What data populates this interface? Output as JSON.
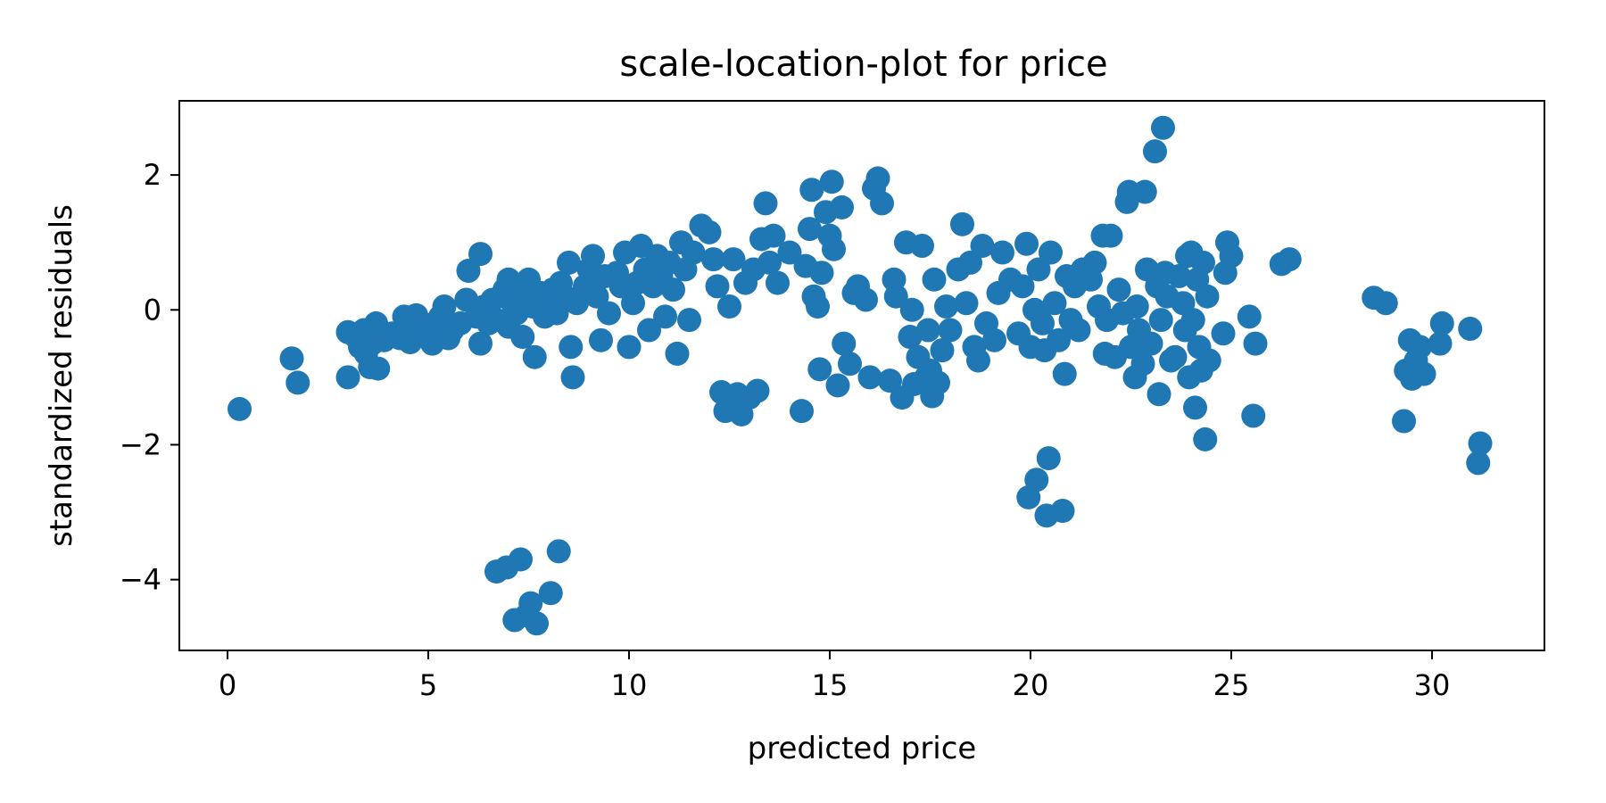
{
  "chart_data": {
    "type": "scatter",
    "title": "scale-location-plot for price",
    "xlabel": "predicted price",
    "ylabel": "standardized residuals",
    "xlim": [
      -1.2,
      32.8
    ],
    "ylim": [
      -5.05,
      3.1
    ],
    "xticks": [
      0,
      5,
      10,
      15,
      20,
      25,
      30
    ],
    "yticks": [
      2,
      0,
      -2,
      -4
    ],
    "ytick_labels": [
      "2",
      "0",
      "−2",
      "−4"
    ],
    "grid": false,
    "series": [
      {
        "color": "#1f77b4",
        "points": [
          [
            0.3,
            -1.47
          ],
          [
            1.6,
            -0.72
          ],
          [
            1.75,
            -1.08
          ],
          [
            3.0,
            -1.0
          ],
          [
            3.0,
            -0.33
          ],
          [
            3.2,
            -0.4
          ],
          [
            3.3,
            -0.55
          ],
          [
            3.4,
            -0.3
          ],
          [
            3.45,
            -0.65
          ],
          [
            3.55,
            -0.85
          ],
          [
            3.6,
            -0.5
          ],
          [
            3.7,
            -0.2
          ],
          [
            3.75,
            -0.87
          ],
          [
            3.9,
            -0.45
          ],
          [
            4.1,
            -0.35
          ],
          [
            4.3,
            -0.42
          ],
          [
            4.4,
            -0.1
          ],
          [
            4.5,
            -0.3
          ],
          [
            4.55,
            -0.48
          ],
          [
            4.7,
            -0.08
          ],
          [
            4.9,
            -0.25
          ],
          [
            5.0,
            -0.4
          ],
          [
            5.1,
            -0.5
          ],
          [
            5.2,
            -0.18
          ],
          [
            5.3,
            -0.1
          ],
          [
            5.4,
            0.05
          ],
          [
            5.5,
            -0.42
          ],
          [
            5.6,
            -0.3
          ],
          [
            5.8,
            -0.2
          ],
          [
            5.95,
            0.15
          ],
          [
            6.0,
            0.58
          ],
          [
            6.3,
            0.83
          ],
          [
            6.2,
            -0.1
          ],
          [
            6.3,
            -0.5
          ],
          [
            6.4,
            0.05
          ],
          [
            6.5,
            -0.2
          ],
          [
            6.6,
            0.15
          ],
          [
            6.7,
            -0.15
          ],
          [
            6.9,
            0.3
          ],
          [
            7.0,
            0.45
          ],
          [
            7.0,
            -0.25
          ],
          [
            7.1,
            0.1
          ],
          [
            7.2,
            -0.05
          ],
          [
            7.3,
            0.2
          ],
          [
            7.35,
            -0.4
          ],
          [
            7.5,
            0.45
          ],
          [
            7.6,
            0.05
          ],
          [
            7.65,
            -0.7
          ],
          [
            7.8,
            0.25
          ],
          [
            7.9,
            -0.1
          ],
          [
            8.0,
            0.1
          ],
          [
            8.1,
            0.3
          ],
          [
            8.2,
            -0.05
          ],
          [
            8.3,
            0.4
          ],
          [
            8.4,
            0.2
          ],
          [
            8.5,
            0.7
          ],
          [
            8.55,
            -0.55
          ],
          [
            8.6,
            -1.0
          ],
          [
            8.7,
            0.1
          ],
          [
            8.9,
            0.35
          ],
          [
            9.0,
            0.6
          ],
          [
            9.1,
            0.8
          ],
          [
            9.2,
            0.2
          ],
          [
            9.3,
            -0.45
          ],
          [
            9.4,
            0.5
          ],
          [
            9.5,
            -0.05
          ],
          [
            9.7,
            0.55
          ],
          [
            9.8,
            0.35
          ],
          [
            9.9,
            0.85
          ],
          [
            10.0,
            -0.55
          ],
          [
            10.1,
            0.1
          ],
          [
            10.2,
            0.4
          ],
          [
            10.3,
            0.95
          ],
          [
            10.4,
            0.6
          ],
          [
            10.5,
            -0.3
          ],
          [
            10.6,
            0.35
          ],
          [
            10.7,
            0.8
          ],
          [
            10.8,
            0.5
          ],
          [
            10.9,
            -0.1
          ],
          [
            11.0,
            0.7
          ],
          [
            11.1,
            0.3
          ],
          [
            11.2,
            -0.65
          ],
          [
            11.3,
            1.0
          ],
          [
            11.4,
            0.6
          ],
          [
            11.5,
            -0.15
          ],
          [
            11.6,
            0.85
          ],
          [
            11.8,
            1.25
          ],
          [
            12.0,
            1.15
          ],
          [
            12.1,
            0.75
          ],
          [
            12.2,
            0.35
          ],
          [
            12.3,
            -1.22
          ],
          [
            12.4,
            -1.5
          ],
          [
            12.5,
            0.05
          ],
          [
            12.6,
            0.75
          ],
          [
            12.7,
            -1.25
          ],
          [
            12.8,
            -1.55
          ],
          [
            12.9,
            0.4
          ],
          [
            13.0,
            -1.3
          ],
          [
            13.1,
            0.6
          ],
          [
            13.2,
            -1.2
          ],
          [
            13.3,
            1.05
          ],
          [
            13.4,
            1.58
          ],
          [
            13.5,
            0.7
          ],
          [
            13.6,
            1.1
          ],
          [
            13.7,
            0.4
          ],
          [
            14.0,
            0.85
          ],
          [
            14.3,
            -1.5
          ],
          [
            14.4,
            0.65
          ],
          [
            14.5,
            1.2
          ],
          [
            14.55,
            1.78
          ],
          [
            14.6,
            0.2
          ],
          [
            14.7,
            0.05
          ],
          [
            14.75,
            -0.88
          ],
          [
            14.8,
            0.55
          ],
          [
            14.9,
            1.45
          ],
          [
            15.0,
            1.1
          ],
          [
            15.05,
            1.9
          ],
          [
            15.1,
            0.9
          ],
          [
            15.2,
            -1.12
          ],
          [
            15.3,
            1.52
          ],
          [
            15.35,
            -0.5
          ],
          [
            15.5,
            -0.8
          ],
          [
            15.6,
            0.25
          ],
          [
            15.7,
            0.35
          ],
          [
            15.9,
            0.15
          ],
          [
            16.0,
            -1.0
          ],
          [
            16.1,
            1.8
          ],
          [
            16.2,
            1.95
          ],
          [
            16.3,
            1.58
          ],
          [
            16.5,
            -1.05
          ],
          [
            16.6,
            0.45
          ],
          [
            16.65,
            0.2
          ],
          [
            16.8,
            -1.3
          ],
          [
            16.9,
            1.0
          ],
          [
            17.0,
            -0.4
          ],
          [
            17.05,
            0.0
          ],
          [
            17.1,
            -1.1
          ],
          [
            17.2,
            -0.7
          ],
          [
            17.3,
            0.95
          ],
          [
            17.4,
            -1.0
          ],
          [
            17.45,
            -0.3
          ],
          [
            17.5,
            -0.9
          ],
          [
            17.55,
            -1.28
          ],
          [
            17.6,
            0.45
          ],
          [
            17.7,
            -1.08
          ],
          [
            17.8,
            -0.6
          ],
          [
            17.9,
            0.05
          ],
          [
            18.0,
            -0.3
          ],
          [
            18.2,
            0.6
          ],
          [
            18.3,
            1.27
          ],
          [
            18.4,
            0.1
          ],
          [
            18.5,
            0.7
          ],
          [
            18.6,
            -0.55
          ],
          [
            18.7,
            -0.75
          ],
          [
            18.8,
            0.95
          ],
          [
            18.9,
            -0.2
          ],
          [
            19.1,
            -0.45
          ],
          [
            19.2,
            0.25
          ],
          [
            19.3,
            0.85
          ],
          [
            19.5,
            0.45
          ],
          [
            19.7,
            -0.35
          ],
          [
            19.8,
            0.35
          ],
          [
            19.9,
            0.98
          ],
          [
            19.95,
            -2.78
          ],
          [
            20.0,
            -0.55
          ],
          [
            20.1,
            0.0
          ],
          [
            20.15,
            -2.52
          ],
          [
            20.2,
            0.6
          ],
          [
            20.3,
            -0.2
          ],
          [
            20.35,
            -0.6
          ],
          [
            20.4,
            -3.05
          ],
          [
            20.45,
            -2.2
          ],
          [
            20.5,
            0.85
          ],
          [
            20.6,
            0.1
          ],
          [
            20.7,
            -0.45
          ],
          [
            20.8,
            -2.98
          ],
          [
            20.85,
            -0.95
          ],
          [
            20.9,
            0.5
          ],
          [
            21.0,
            -0.15
          ],
          [
            21.1,
            0.35
          ],
          [
            21.2,
            -0.3
          ],
          [
            21.3,
            0.6
          ],
          [
            21.5,
            0.45
          ],
          [
            21.6,
            0.7
          ],
          [
            21.7,
            0.05
          ],
          [
            21.8,
            1.1
          ],
          [
            21.85,
            -0.65
          ],
          [
            21.9,
            -0.15
          ],
          [
            22.0,
            1.1
          ],
          [
            22.1,
            -0.7
          ],
          [
            22.2,
            0.3
          ],
          [
            22.3,
            -0.05
          ],
          [
            22.4,
            1.6
          ],
          [
            22.45,
            1.75
          ],
          [
            22.5,
            -0.55
          ],
          [
            22.6,
            -1.0
          ],
          [
            22.65,
            0.05
          ],
          [
            22.7,
            -0.3
          ],
          [
            22.8,
            -0.8
          ],
          [
            22.85,
            1.75
          ],
          [
            22.9,
            0.6
          ],
          [
            23.0,
            -0.5
          ],
          [
            23.1,
            2.35
          ],
          [
            23.15,
            0.35
          ],
          [
            23.2,
            -1.25
          ],
          [
            23.25,
            -0.15
          ],
          [
            23.3,
            2.7
          ],
          [
            23.35,
            0.55
          ],
          [
            23.4,
            0.2
          ],
          [
            23.5,
            -0.75
          ],
          [
            23.6,
            -0.7
          ],
          [
            23.7,
            0.5
          ],
          [
            23.8,
            0.1
          ],
          [
            23.85,
            -0.3
          ],
          [
            23.9,
            0.8
          ],
          [
            23.95,
            -1.0
          ],
          [
            24.0,
            0.85
          ],
          [
            24.05,
            -0.15
          ],
          [
            24.1,
            -1.45
          ],
          [
            24.15,
            0.45
          ],
          [
            24.2,
            -0.55
          ],
          [
            24.25,
            -0.9
          ],
          [
            24.3,
            0.7
          ],
          [
            24.35,
            -1.92
          ],
          [
            24.4,
            0.2
          ],
          [
            24.45,
            -0.75
          ],
          [
            24.8,
            -0.35
          ],
          [
            24.85,
            0.55
          ],
          [
            24.9,
            1.0
          ],
          [
            25.0,
            0.8
          ],
          [
            25.45,
            -0.1
          ],
          [
            25.55,
            -1.57
          ],
          [
            25.6,
            -0.5
          ],
          [
            26.25,
            0.68
          ],
          [
            26.45,
            0.75
          ],
          [
            28.55,
            0.18
          ],
          [
            28.85,
            0.1
          ],
          [
            29.3,
            -1.65
          ],
          [
            29.35,
            -0.9
          ],
          [
            29.45,
            -0.45
          ],
          [
            29.5,
            -1.02
          ],
          [
            29.6,
            -0.75
          ],
          [
            29.7,
            -0.55
          ],
          [
            29.8,
            -0.95
          ],
          [
            30.2,
            -0.5
          ],
          [
            30.25,
            -0.2
          ],
          [
            30.95,
            -0.28
          ],
          [
            31.15,
            -2.27
          ],
          [
            31.2,
            -1.98
          ],
          [
            6.7,
            -3.88
          ],
          [
            6.95,
            -3.82
          ],
          [
            7.15,
            -4.6
          ],
          [
            7.3,
            -3.7
          ],
          [
            7.45,
            -4.53
          ],
          [
            7.55,
            -4.35
          ],
          [
            7.7,
            -4.65
          ],
          [
            8.05,
            -4.2
          ],
          [
            8.25,
            -3.58
          ]
        ]
      }
    ]
  }
}
